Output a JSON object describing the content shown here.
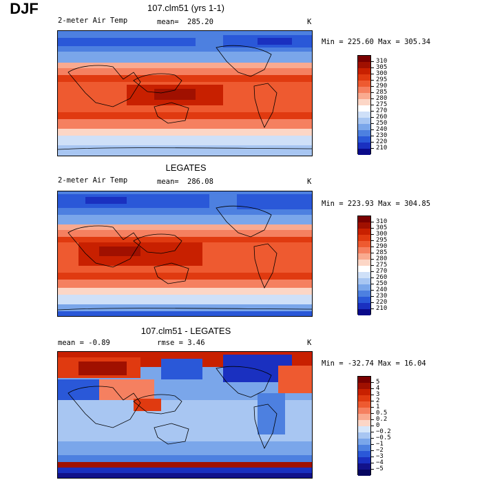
{
  "season": "DJF",
  "panels": [
    {
      "title": "107.clm51 (yrs 1-1)",
      "variable": "2-meter Air Temp",
      "mean_label": "mean=",
      "mean_value": "285.20",
      "units": "K",
      "minmax": "Min = 225.60 Max = 305.34",
      "colorbar_labels": [
        "310",
        "305",
        "300",
        "295",
        "290",
        "285",
        "280",
        "275",
        "270",
        "260",
        "250",
        "240",
        "230",
        "220",
        "210"
      ]
    },
    {
      "title": "LEGATES",
      "variable": "2-meter Air Temp",
      "mean_label": "mean=",
      "mean_value": "286.08",
      "units": "K",
      "minmax": "Min = 223.93 Max = 304.85",
      "colorbar_labels": [
        "310",
        "305",
        "300",
        "295",
        "290",
        "285",
        "280",
        "275",
        "270",
        "260",
        "250",
        "240",
        "230",
        "220",
        "210"
      ]
    },
    {
      "title": "107.clm51 - LEGATES",
      "variable": "mean =  -0.89",
      "rmse": "rmse =   3.46",
      "units": "K",
      "minmax": "Min = -32.74 Max =  16.04",
      "colorbar_labels": [
        "5",
        "4",
        "3",
        "2",
        "1",
        "0.5",
        "0.2",
        "0",
        "−0.2",
        "−0.5",
        "−1",
        "−2",
        "−3",
        "−4",
        "−5"
      ]
    }
  ],
  "colors": {
    "abs": [
      "#7a0000",
      "#a01000",
      "#c82000",
      "#e03a10",
      "#ee5a30",
      "#f58060",
      "#f9aa90",
      "#fcd6c6",
      "#ffffff",
      "#cfe0f8",
      "#a8c6f2",
      "#7aa6ea",
      "#4d80e0",
      "#2a58d8",
      "#1a30c0",
      "#0a0a8a"
    ],
    "diff": [
      "#7a0000",
      "#a01000",
      "#c82000",
      "#e03a10",
      "#ee5a30",
      "#f58060",
      "#f9aa90",
      "#fcd6c6",
      "#d6e6fa",
      "#a8c6f2",
      "#7aa6ea",
      "#4d80e0",
      "#2a58d8",
      "#1a30c0",
      "#12128a",
      "#060660"
    ]
  }
}
